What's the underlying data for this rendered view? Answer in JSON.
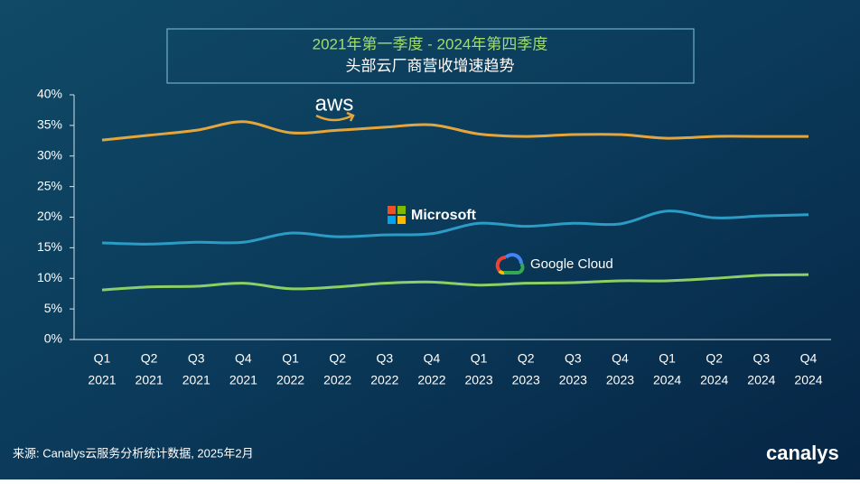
{
  "chart_data": {
    "type": "line",
    "title": "2021年第一季度 -  2024年第四季度",
    "subtitle": "头部云厂商营收增速趋势",
    "source": "来源: Canalys云服务分析统计数据, 2025年2月",
    "brand": "canalys",
    "categories": [
      [
        "Q1",
        "2021"
      ],
      [
        "Q2",
        "2021"
      ],
      [
        "Q3",
        "2021"
      ],
      [
        "Q4",
        "2021"
      ],
      [
        "Q1",
        "2022"
      ],
      [
        "Q2",
        "2022"
      ],
      [
        "Q3",
        "2022"
      ],
      [
        "Q4",
        "2022"
      ],
      [
        "Q1",
        "2023"
      ],
      [
        "Q2",
        "2023"
      ],
      [
        "Q3",
        "2023"
      ],
      [
        "Q4",
        "2023"
      ],
      [
        "Q1",
        "2024"
      ],
      [
        "Q2",
        "2024"
      ],
      [
        "Q3",
        "2024"
      ],
      [
        "Q4",
        "2024"
      ]
    ],
    "series": [
      {
        "name": "aws",
        "color": "#e4a63c",
        "values": [
          32.6,
          33.4,
          34.2,
          35.6,
          33.8,
          34.2,
          34.7,
          35.1,
          33.6,
          33.2,
          33.5,
          33.5,
          32.9,
          33.2,
          33.2,
          33.2
        ]
      },
      {
        "name": "Microsoft",
        "color": "#2b9cc6",
        "values": [
          15.8,
          15.6,
          15.9,
          15.9,
          17.4,
          16.8,
          17.1,
          17.3,
          19.0,
          18.5,
          19.0,
          18.9,
          21.0,
          19.9,
          20.2,
          20.4
        ]
      },
      {
        "name": "Google Cloud",
        "color": "#8ccf66",
        "values": [
          8.1,
          8.6,
          8.7,
          9.2,
          8.3,
          8.6,
          9.2,
          9.4,
          8.9,
          9.2,
          9.3,
          9.6,
          9.6,
          10.0,
          10.5,
          10.6
        ]
      }
    ],
    "ylim": [
      0,
      40
    ],
    "yticks": [
      {
        "value": 0,
        "label": "0%"
      },
      {
        "value": 5,
        "label": "5%"
      },
      {
        "value": 10,
        "label": "10%"
      },
      {
        "value": 15,
        "label": "15%"
      },
      {
        "value": 20,
        "label": "20%"
      },
      {
        "value": 25,
        "label": "25%"
      },
      {
        "value": 30,
        "label": "30%"
      },
      {
        "value": 35,
        "label": "35%"
      },
      {
        "value": 40,
        "label": "40%"
      }
    ]
  }
}
